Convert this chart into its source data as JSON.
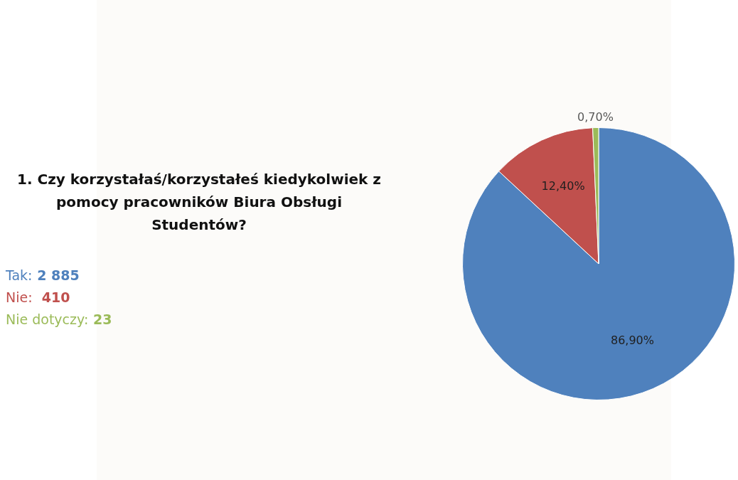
{
  "chart_data": {
    "type": "pie",
    "title": "1. Czy korzystałaś/korzystałeś kiedykolwiek z pomocy pracowników Biura Obsługi Studentów?",
    "categories": [
      null,
      null,
      null
    ],
    "values": [
      86.9,
      12.4,
      0.7
    ],
    "colors": [
      "#4f81bd",
      "#c0504d",
      "#9bbb59"
    ],
    "value_labels": [
      "86,90%",
      "12,40%",
      "0,70%"
    ],
    "annotations": [
      "Tak: 2 885",
      "Nie:  410",
      "Nie dotyczy: 23"
    ]
  }
}
